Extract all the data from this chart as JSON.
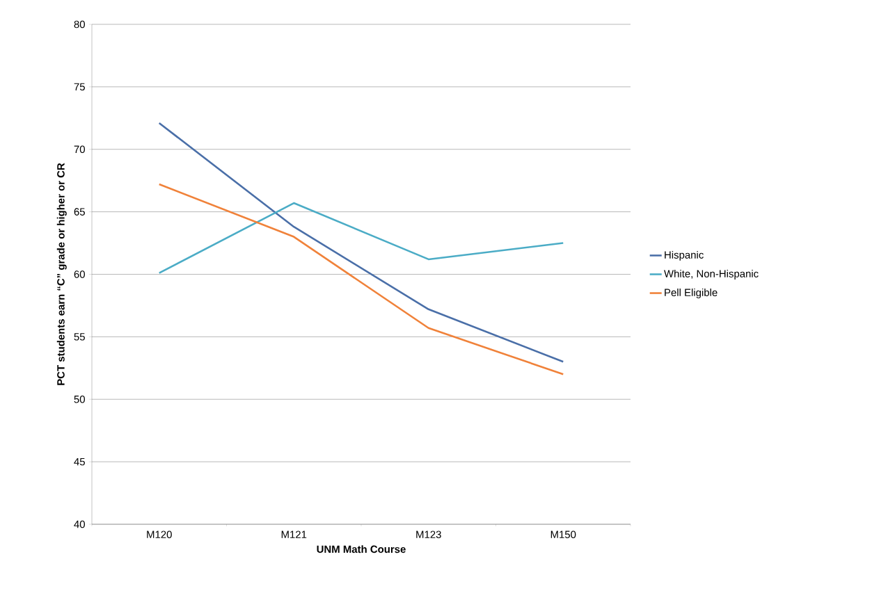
{
  "chart_data": {
    "type": "line",
    "xlabel": "UNM Math Course",
    "ylabel": "PCT students earn “C” grade or higher or CR",
    "categories": [
      "M120",
      "M121",
      "M123",
      "M150"
    ],
    "series": [
      {
        "name": "Hispanic",
        "color": "#4a6fa8",
        "values": [
          72.1,
          63.8,
          57.2,
          53.0
        ]
      },
      {
        "name": "White, Non-Hispanic",
        "color": "#4bacc6",
        "values": [
          60.1,
          65.7,
          61.2,
          62.5
        ]
      },
      {
        "name": "Pell Eligible",
        "color": "#f0823a",
        "values": [
          67.2,
          63.0,
          55.7,
          52.0
        ]
      }
    ],
    "ylim": [
      40,
      80
    ],
    "yticks": [
      40,
      45,
      50,
      55,
      60,
      65,
      70,
      75,
      80
    ],
    "grid": "y",
    "legend": "right",
    "marker": "none",
    "line_style": "solid"
  }
}
